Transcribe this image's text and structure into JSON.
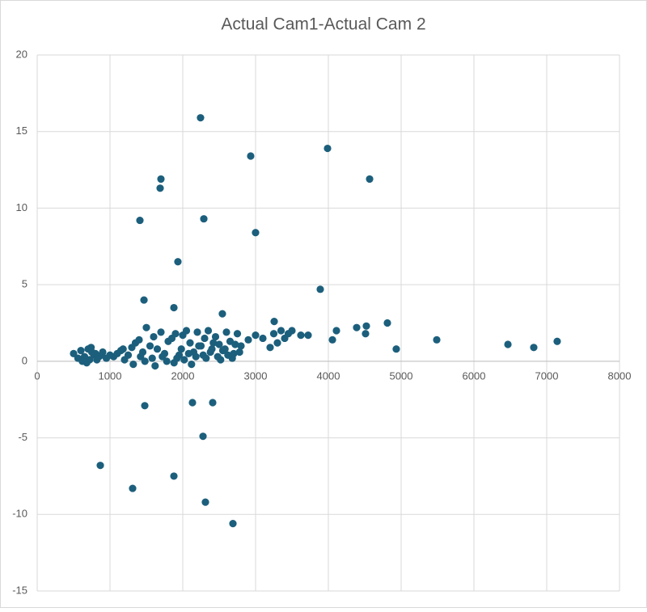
{
  "chart_data": {
    "type": "scatter",
    "title": "Actual Cam1-Actual Cam 2",
    "x": [
      2244,
      2933,
      3989,
      4567,
      1700,
      1689,
      1411,
      2289,
      3000,
      1933,
      3889,
      1467,
      1878,
      2544,
      3256,
      4811,
      4522,
      4389,
      4111,
      4511,
      5489,
      4056,
      6467,
      6822,
      7144,
      4933,
      3622,
      3722,
      1478,
      2133,
      2411,
      2278,
      867,
      1878,
      1311,
      2311,
      2689,
      500,
      560,
      600,
      650,
      700,
      720,
      750,
      780,
      800,
      850,
      900,
      950,
      1000,
      1050,
      1100,
      1150,
      1200,
      1250,
      1300,
      1350,
      1400,
      1450,
      1500,
      1550,
      1600,
      1650,
      1700,
      1750,
      1800,
      1850,
      1900,
      1950,
      2000,
      2050,
      2100,
      2150,
      2200,
      2250,
      2300,
      2350,
      2400,
      2450,
      2500,
      2550,
      2600,
      2650,
      2700,
      2750,
      2800,
      2900,
      3000,
      3100,
      3200,
      3250,
      3300,
      3350,
      3400,
      3450,
      3500,
      620,
      680,
      740,
      820,
      880,
      1180,
      1320,
      1420,
      1480,
      1580,
      1620,
      1720,
      1780,
      1880,
      1920,
      1980,
      2020,
      2080,
      2120,
      2180,
      2220,
      2280,
      2320,
      2380,
      2420,
      2480,
      2520,
      2580,
      2620,
      2680,
      2720,
      2780
    ],
    "values": [
      15.9,
      13.4,
      13.9,
      11.9,
      11.9,
      11.3,
      9.2,
      9.3,
      8.4,
      6.5,
      4.7,
      4.0,
      3.5,
      3.1,
      2.6,
      2.5,
      2.3,
      2.2,
      2.0,
      1.8,
      1.4,
      1.4,
      1.1,
      0.9,
      1.3,
      0.8,
      1.7,
      1.7,
      -2.9,
      -2.7,
      -2.7,
      -4.9,
      -6.8,
      -7.5,
      -8.3,
      -9.2,
      -10.6,
      0.5,
      0.2,
      0.7,
      0.3,
      0.8,
      0.1,
      0.6,
      0.4,
      0.5,
      0.3,
      0.6,
      0.2,
      0.4,
      0.3,
      0.5,
      0.7,
      0.1,
      0.4,
      0.9,
      1.2,
      1.4,
      0.6,
      2.2,
      1.0,
      1.6,
      0.8,
      1.9,
      0.5,
      1.3,
      1.5,
      1.8,
      0.4,
      1.7,
      2.0,
      1.2,
      0.6,
      1.9,
      1.0,
      1.5,
      2.0,
      0.8,
      1.6,
      1.1,
      0.7,
      1.9,
      1.3,
      0.5,
      1.8,
      1.0,
      1.4,
      1.7,
      1.5,
      0.9,
      1.8,
      1.2,
      2.0,
      1.5,
      1.8,
      2.0,
      0.0,
      -0.1,
      0.9,
      0.1,
      0.4,
      0.8,
      -0.2,
      0.3,
      0.0,
      0.2,
      -0.3,
      0.3,
      0.0,
      -0.1,
      0.2,
      0.8,
      0.1,
      0.5,
      -0.2,
      0.3,
      1.0,
      0.4,
      0.2,
      0.6,
      1.2,
      0.3,
      0.1,
      0.8,
      0.4,
      0.2,
      1.1,
      0.6
    ],
    "color": "#1c5f7c",
    "xlim": [
      0,
      8000
    ],
    "xticks": [
      0,
      1000,
      2000,
      3000,
      4000,
      5000,
      6000,
      7000,
      8000
    ],
    "ylim": [
      -15,
      20
    ],
    "yticks": [
      -15,
      -10,
      -5,
      0,
      5,
      10,
      15,
      20
    ],
    "grid": true
  }
}
